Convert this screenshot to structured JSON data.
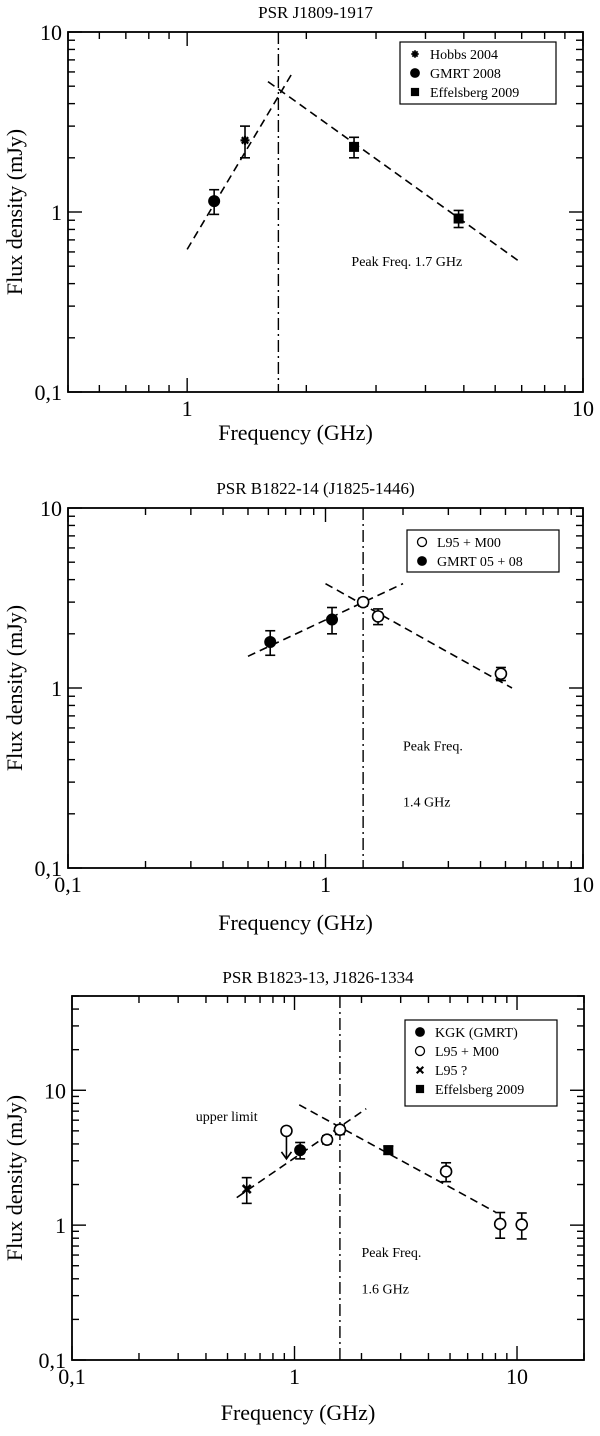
{
  "chart_data": [
    {
      "type": "scatter",
      "title": "PSR J1809-1917",
      "xlabel": "Frequency (GHz)",
      "ylabel": "Flux density (mJy)",
      "xscale": "log",
      "yscale": "log",
      "xlim": [
        0.5,
        10
      ],
      "ylim": [
        0.1,
        10
      ],
      "xtick_labels": [
        {
          "v": 1,
          "t": "1"
        },
        {
          "v": 10,
          "t": "10"
        }
      ],
      "ytick_labels": [
        {
          "v": 0.1,
          "t": "0,1"
        },
        {
          "v": 1,
          "t": "1"
        },
        {
          "v": 10,
          "t": "10"
        }
      ],
      "legend_position": "top-right",
      "series": [
        {
          "name": "Hobbs  2004",
          "marker": "star",
          "points": [
            {
              "x": 1.4,
              "y": 2.5,
              "err": 0.5
            }
          ]
        },
        {
          "name": "GMRT 2008",
          "marker": "circle-filled",
          "points": [
            {
              "x": 1.17,
              "y": 1.15,
              "err": 0.18
            }
          ]
        },
        {
          "name": "Effelsberg 2009",
          "marker": "square-filled",
          "points": [
            {
              "x": 2.64,
              "y": 2.3,
              "err": 0.3
            },
            {
              "x": 4.85,
              "y": 0.92,
              "err": 0.1
            }
          ]
        }
      ],
      "fit_lines": [
        {
          "style": "dashed",
          "from": [
            1.0,
            0.62
          ],
          "to": [
            1.85,
            6.0
          ]
        },
        {
          "style": "dashed",
          "from": [
            1.6,
            5.3
          ],
          "to": [
            7.0,
            0.52
          ]
        }
      ],
      "vline": {
        "x": 1.7,
        "style": "dash-dot"
      },
      "annotations": [
        {
          "text": "Peak Freq.  1.7 GHz",
          "x": 2.6,
          "y": 0.5
        }
      ]
    },
    {
      "type": "scatter",
      "title": "PSR B1822-14  (J1825-1446)",
      "xlabel": "Frequency (GHz)",
      "ylabel": "Flux  density  (mJy)",
      "xscale": "log",
      "yscale": "log",
      "xlim": [
        0.1,
        10
      ],
      "ylim": [
        0.1,
        10
      ],
      "xtick_labels": [
        {
          "v": 0.1,
          "t": "0,1"
        },
        {
          "v": 1,
          "t": "1"
        },
        {
          "v": 10,
          "t": "10"
        }
      ],
      "ytick_labels": [
        {
          "v": 0.1,
          "t": "0,1"
        },
        {
          "v": 1,
          "t": "1"
        },
        {
          "v": 10,
          "t": "10"
        }
      ],
      "legend_position": "top-right",
      "series": [
        {
          "name": "L95 + M00",
          "marker": "circle-open",
          "points": [
            {
              "x": 1.4,
              "y": 3.0,
              "err": 0.15
            },
            {
              "x": 1.6,
              "y": 2.5,
              "err": 0.25
            },
            {
              "x": 4.8,
              "y": 1.2,
              "err": 0.1
            }
          ]
        },
        {
          "name": "GMRT 05 + 08",
          "marker": "circle-filled",
          "points": [
            {
              "x": 0.61,
              "y": 1.8,
              "err": 0.28
            },
            {
              "x": 1.06,
              "y": 2.4,
              "err": 0.4
            }
          ]
        }
      ],
      "fit_lines": [
        {
          "style": "dashed",
          "from": [
            0.5,
            1.5
          ],
          "to": [
            2.0,
            3.8
          ]
        },
        {
          "style": "dashed",
          "from": [
            1.0,
            3.8
          ],
          "to": [
            5.3,
            1.0
          ]
        }
      ],
      "vline": {
        "x": 1.4,
        "style": "dash-dot"
      },
      "annotations": [
        {
          "text": "Peak Freq.",
          "x": 2.0,
          "y": 0.45
        },
        {
          "text": "1.4 GHz",
          "x": 2.0,
          "y": 0.22
        }
      ]
    },
    {
      "type": "scatter",
      "title": "PSR B1823-13, J1826-1334",
      "xlabel": "Frequency (GHz)",
      "ylabel": "Flux density (mJy)",
      "xscale": "log",
      "yscale": "log",
      "xlim": [
        0.1,
        20
      ],
      "ylim": [
        0.1,
        50
      ],
      "xtick_labels": [
        {
          "v": 0.1,
          "t": "0,1"
        },
        {
          "v": 1,
          "t": "1"
        },
        {
          "v": 10,
          "t": "10"
        }
      ],
      "ytick_labels": [
        {
          "v": 0.1,
          "t": "0,1"
        },
        {
          "v": 1,
          "t": "1"
        },
        {
          "v": 10,
          "t": "10"
        }
      ],
      "legend_position": "top-right",
      "series": [
        {
          "name": "KGK (GMRT)",
          "marker": "circle-filled",
          "points": [
            {
              "x": 1.06,
              "y": 3.6,
              "err": 0.5
            }
          ]
        },
        {
          "name": "L95 + M00",
          "marker": "circle-open",
          "points": [
            {
              "x": 0.92,
              "y": 5.0,
              "err": 0,
              "upper_limit": true
            },
            {
              "x": 1.4,
              "y": 4.3,
              "err": 0.3
            },
            {
              "x": 1.6,
              "y": 5.1,
              "err": 0.4
            },
            {
              "x": 4.8,
              "y": 2.5,
              "err": 0.4
            },
            {
              "x": 8.4,
              "y": 1.02,
              "err": 0.22
            },
            {
              "x": 10.5,
              "y": 1.01,
              "err": 0.22
            }
          ]
        },
        {
          "name": "L95 ?",
          "marker": "x",
          "points": [
            {
              "x": 0.61,
              "y": 1.85,
              "err": 0.4
            }
          ]
        },
        {
          "name": "Effelsberg 2009",
          "marker": "square-filled",
          "points": [
            {
              "x": 2.64,
              "y": 3.6,
              "err": 0.25
            }
          ]
        }
      ],
      "fit_lines": [
        {
          "style": "dashed",
          "from": [
            0.55,
            1.6
          ],
          "to": [
            2.1,
            7.3
          ]
        },
        {
          "style": "dashed",
          "from": [
            1.05,
            7.8
          ],
          "to": [
            8.0,
            1.25
          ]
        }
      ],
      "vline": {
        "x": 1.6,
        "style": "dash-dot"
      },
      "annotations": [
        {
          "text": "upper limit",
          "x": 0.36,
          "y": 5.9
        },
        {
          "text": "Peak Freq.",
          "x": 2.0,
          "y": 0.58
        },
        {
          "text": "1.6 GHz",
          "x": 2.0,
          "y": 0.31
        }
      ]
    }
  ]
}
